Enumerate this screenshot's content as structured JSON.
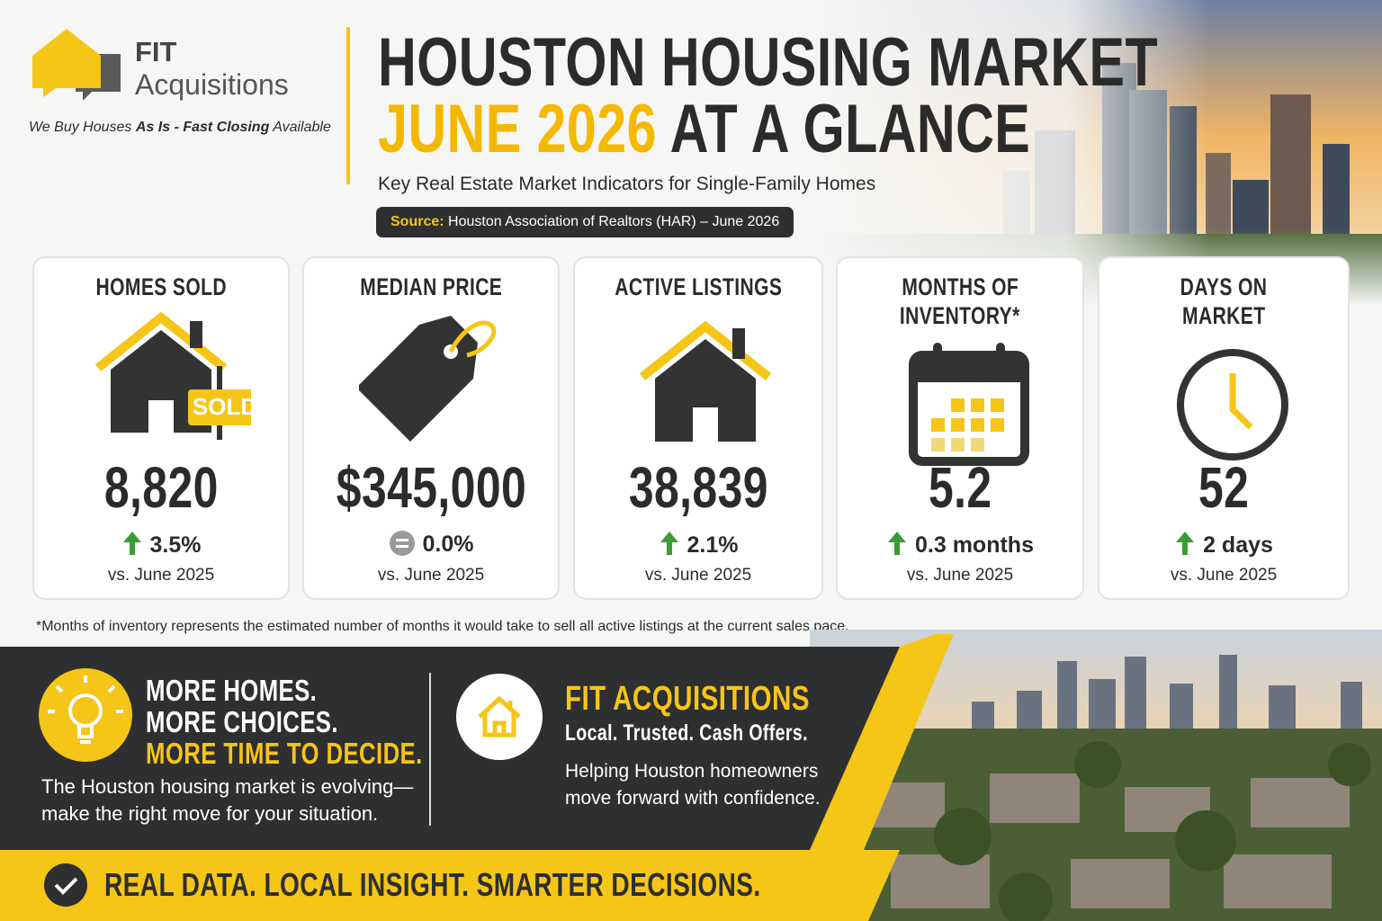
{
  "brand": {
    "name_top": "FIT",
    "name_bottom": "Acquisitions",
    "tagline_pre": "We Buy Houses ",
    "tagline_bold": "As Is - Fast Closing",
    "tagline_post": " Available"
  },
  "header": {
    "title_line1": "HOUSTON HOUSING MARKET",
    "title_highlight": "JUNE 2026",
    "title_rest": "AT A GLANCE",
    "subtitle": "Key Real Estate Market Indicators for Single-Family Homes",
    "source_label": "Source:",
    "source_text": "Houston Association of Realtors (HAR) – June 2026"
  },
  "cards": [
    {
      "title": [
        "HOMES SOLD"
      ],
      "icon": "house-sold",
      "badge": "SOLD",
      "value": "8,820",
      "trend": "up",
      "change": "3.5%",
      "comparison": "vs. June 2025"
    },
    {
      "title": [
        "MEDIAN PRICE"
      ],
      "icon": "tag",
      "value": "$345,000",
      "trend": "flat",
      "change": "0.0%",
      "comparison": "vs. June 2025"
    },
    {
      "title": [
        "ACTIVE LISTINGS"
      ],
      "icon": "house",
      "value": "38,839",
      "trend": "up",
      "change": "2.1%",
      "comparison": "vs. June 2025"
    },
    {
      "title": [
        "MONTHS OF",
        "INVENTORY*"
      ],
      "icon": "calendar",
      "value": "5.2",
      "trend": "up",
      "change": "0.3 months",
      "comparison": "vs. June 2025"
    },
    {
      "title": [
        "DAYS ON",
        "MARKET"
      ],
      "icon": "clock",
      "value": "52",
      "trend": "up",
      "change": "2 days",
      "comparison": "vs. June 2025"
    }
  ],
  "footnote": "*Months of inventory represents the estimated number of months it would take to sell all active listings at the current sales pace.",
  "message": {
    "headline": [
      "MORE HOMES.",
      "MORE CHOICES.",
      "MORE TIME TO DECIDE."
    ],
    "body": "The Houston housing market is evolving—make the right move for your situation."
  },
  "promo": {
    "title": "FIT ACQUISITIONS",
    "tagline": "Local. Trusted. Cash Offers.",
    "body": "Helping Houston homeowners move forward with confidence."
  },
  "banner": {
    "text": "REAL DATA. LOCAL INSIGHT. SMARTER DECISIONS."
  }
}
